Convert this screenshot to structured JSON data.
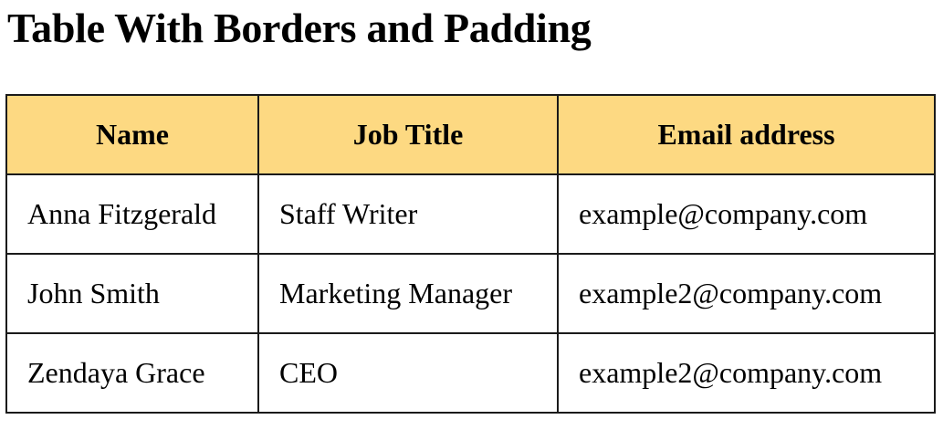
{
  "page": {
    "title": "Table With Borders and Padding"
  },
  "table": {
    "headers": [
      "Name",
      "Job Title",
      "Email address"
    ],
    "rows": [
      [
        "Anna Fitzgerald",
        "Staff Writer",
        "example@company.com"
      ],
      [
        "John Smith",
        "Marketing Manager",
        "example2@company.com"
      ],
      [
        "Zendaya Grace",
        "CEO",
        "example2@company.com"
      ]
    ],
    "header_bg": "#fdd982",
    "border_color": "#1a1a1a"
  }
}
